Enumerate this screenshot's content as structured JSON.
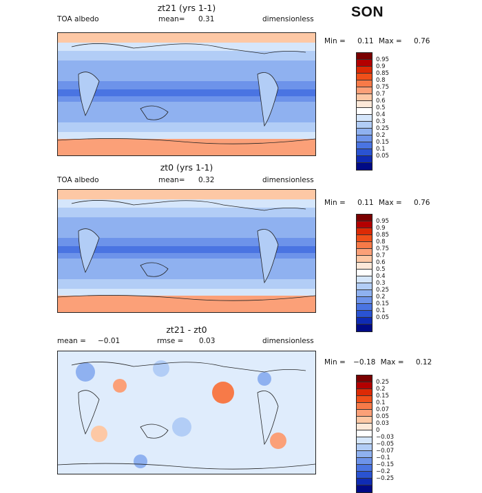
{
  "season": "SON",
  "panels": [
    {
      "title": "zt21 (yrs 1-1)",
      "left_label": "TOA albedo",
      "mean_label": "mean=",
      "mean_value": "0.31",
      "units": "dimensionless",
      "min_label": "Min =",
      "min_value": "0.11",
      "max_label": "Max =",
      "max_value": "0.76",
      "colorbar_ticks": [
        "0.95",
        "0.9",
        "0.85",
        "0.8",
        "0.75",
        "0.7",
        "0.6",
        "0.5",
        "0.4",
        "0.3",
        "0.25",
        "0.2",
        "0.15",
        "0.1",
        "0.05"
      ],
      "colorbar_colors": [
        "#7a0000",
        "#b30000",
        "#dc2a05",
        "#f0501a",
        "#f77a48",
        "#fba078",
        "#fdc8a5",
        "#fde8d8",
        "#ffffff",
        "#d5e6fb",
        "#b2cdf6",
        "#8fb1f0",
        "#6d93ea",
        "#4a74e2",
        "#2a53d2",
        "#0f2bb4",
        "#000a86"
      ]
    },
    {
      "title": "zt0 (yrs 1-1)",
      "left_label": "TOA albedo",
      "mean_label": "mean=",
      "mean_value": "0.32",
      "units": "dimensionless",
      "min_label": "Min =",
      "min_value": "0.11",
      "max_label": "Max =",
      "max_value": "0.76",
      "colorbar_ticks": [
        "0.95",
        "0.9",
        "0.85",
        "0.8",
        "0.75",
        "0.7",
        "0.6",
        "0.5",
        "0.4",
        "0.3",
        "0.25",
        "0.2",
        "0.15",
        "0.1",
        "0.05"
      ],
      "colorbar_colors": [
        "#7a0000",
        "#b30000",
        "#dc2a05",
        "#f0501a",
        "#f77a48",
        "#fba078",
        "#fdc8a5",
        "#fde8d8",
        "#ffffff",
        "#d5e6fb",
        "#b2cdf6",
        "#8fb1f0",
        "#6d93ea",
        "#4a74e2",
        "#2a53d2",
        "#0f2bb4",
        "#000a86"
      ]
    },
    {
      "title": "zt21 - zt0",
      "left_label": "mean =",
      "left_value": "−0.01",
      "rmse_label": "rmse =",
      "rmse_value": "0.03",
      "units": "dimensionless",
      "min_label": "Min =",
      "min_value": "−0.18",
      "max_label": "Max =",
      "max_value": "0.12",
      "colorbar_ticks": [
        "0.25",
        "0.2",
        "0.15",
        "0.1",
        "0.07",
        "0.05",
        "0.03",
        "0",
        "−0.03",
        "−0.05",
        "−0.07",
        "−0.1",
        "−0.15",
        "−0.2",
        "−0.25"
      ],
      "colorbar_colors": [
        "#7a0000",
        "#b30000",
        "#dc2a05",
        "#f0501a",
        "#f77a48",
        "#fba078",
        "#fdc8a5",
        "#fde8d8",
        "#ffffff",
        "#d5e6fb",
        "#b2cdf6",
        "#8fb1f0",
        "#6d93ea",
        "#4a74e2",
        "#2a53d2",
        "#0f2bb4",
        "#000a86"
      ]
    }
  ]
}
